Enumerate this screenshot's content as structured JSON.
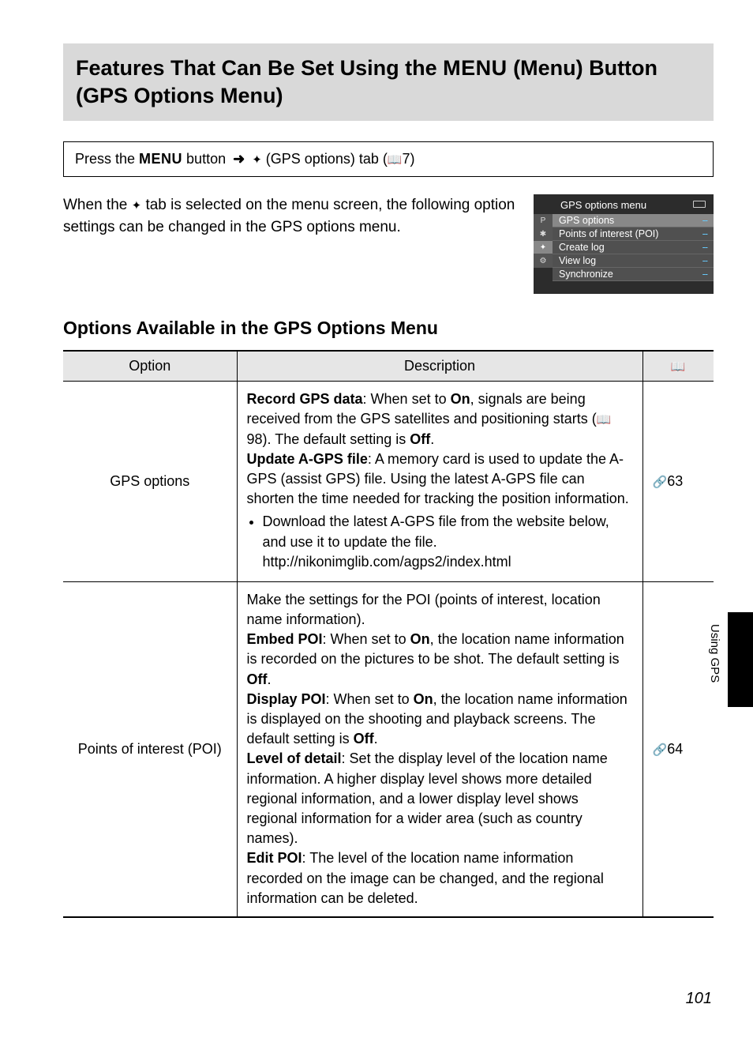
{
  "title": {
    "pre": "Features That Can Be Set Using the ",
    "menu_word": "MENU",
    "post": " (Menu) Button (GPS Options Menu)"
  },
  "nav": {
    "pre": "Press the ",
    "menu_word": "MENU",
    "mid1": " button ",
    "arrow": "➜",
    "sat": "✦",
    "mid2": " (GPS options) tab (",
    "book": "📖",
    "ref": "7)",
    "close": ""
  },
  "intro": {
    "l1": "When the ",
    "sat": "✦",
    "l2": " tab is selected on the menu screen, the following option settings can be changed in the GPS options menu."
  },
  "lcd": {
    "header": "GPS options menu",
    "tabs": [
      "P",
      "✱",
      "✦",
      "⚙"
    ],
    "rows": [
      {
        "label": "GPS options",
        "val": "--",
        "sel": true
      },
      {
        "label": "Points of interest (POI)",
        "val": "--"
      },
      {
        "label": "Create log",
        "val": "--"
      },
      {
        "label": "View log",
        "val": "--"
      },
      {
        "label": "Synchronize",
        "val": "--"
      }
    ]
  },
  "subhead": "Options Available in the GPS Options Menu",
  "thead": {
    "c1": "Option",
    "c2": "Description",
    "c3_icon": "📖"
  },
  "rows": [
    {
      "option": "GPS options",
      "ref_icon": "🔗",
      "ref": "63",
      "d": {
        "p1b": "Record GPS data",
        "p1a": ": When set to ",
        "p1on": "On",
        "p1c": ", signals are being received from the GPS satellites and positioning starts (",
        "p1book": "📖",
        "p1d": "98). The default setting is ",
        "p1off": "Off",
        "p1e": ".",
        "p2b": "Update A-GPS file",
        "p2a": ": A memory card is used to update the A-GPS (assist GPS) file. Using the latest A-GPS file can shorten the time needed for tracking the position information.",
        "li1": "Download the latest A-GPS file from the website below, and use it to update the file.",
        "url": "http://nikonimglib.com/agps2/index.html"
      }
    },
    {
      "option": "Points of interest (POI)",
      "ref_icon": "🔗",
      "ref": "64",
      "d": {
        "p0": "Make the settings for the POI (points of interest, location name information).",
        "p1b": "Embed POI",
        "p1a": ": When set to ",
        "p1on": "On",
        "p1c": ", the location name information is recorded on the pictures to be shot. The default setting is ",
        "p1off": "Off",
        "p1e": ".",
        "p2b": "Display POI",
        "p2a": ": When set to ",
        "p2on": "On",
        "p2c": ", the location name information is displayed on the shooting and playback screens. The default setting is ",
        "p2off": "Off",
        "p2e": ".",
        "p3b": "Level of detail",
        "p3a": ": Set the display level of the location name information. A higher display level shows more detailed regional information, and a lower display level shows regional information for a wider area (such as country names).",
        "p4b": "Edit POI",
        "p4a": ": The level of the location name information recorded on the image can be changed, and the regional information can be deleted."
      }
    }
  ],
  "side_label": "Using GPS",
  "page_num": "101"
}
